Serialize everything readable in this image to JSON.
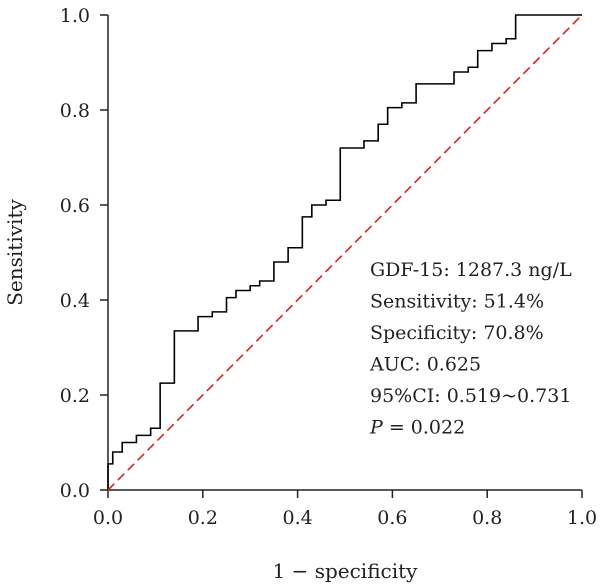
{
  "chart_data": {
    "type": "line",
    "xlabel": "1 − specificity",
    "ylabel": "Sensitivity",
    "xlim": [
      0,
      1
    ],
    "ylim": [
      0,
      1
    ],
    "x_ticks": [
      "0.0",
      "0.2",
      "0.4",
      "0.6",
      "0.8",
      "1.0"
    ],
    "y_ticks": [
      "0.0",
      "0.2",
      "0.4",
      "0.6",
      "0.8",
      "1.0"
    ],
    "grid": false,
    "series": [
      {
        "style": "step",
        "color": "#000000",
        "x": [
          0.0,
          0.0,
          0.01,
          0.01,
          0.03,
          0.03,
          0.06,
          0.06,
          0.09,
          0.09,
          0.11,
          0.11,
          0.14,
          0.14,
          0.19,
          0.19,
          0.22,
          0.22,
          0.25,
          0.25,
          0.27,
          0.27,
          0.3,
          0.3,
          0.32,
          0.32,
          0.35,
          0.35,
          0.38,
          0.38,
          0.41,
          0.41,
          0.43,
          0.43,
          0.46,
          0.46,
          0.49,
          0.49,
          0.54,
          0.54,
          0.57,
          0.57,
          0.59,
          0.59,
          0.62,
          0.62,
          0.65,
          0.65,
          0.73,
          0.73,
          0.76,
          0.76,
          0.78,
          0.78,
          0.81,
          0.81,
          0.84,
          0.84,
          0.86,
          0.86,
          1.0
        ],
        "y": [
          0.0,
          0.055,
          0.055,
          0.08,
          0.08,
          0.1,
          0.1,
          0.115,
          0.115,
          0.13,
          0.13,
          0.225,
          0.225,
          0.335,
          0.335,
          0.365,
          0.365,
          0.375,
          0.375,
          0.405,
          0.405,
          0.42,
          0.42,
          0.43,
          0.43,
          0.44,
          0.44,
          0.48,
          0.48,
          0.51,
          0.51,
          0.575,
          0.575,
          0.6,
          0.6,
          0.61,
          0.61,
          0.72,
          0.72,
          0.735,
          0.735,
          0.77,
          0.77,
          0.805,
          0.805,
          0.815,
          0.815,
          0.855,
          0.855,
          0.88,
          0.88,
          0.89,
          0.89,
          0.925,
          0.925,
          0.94,
          0.94,
          0.95,
          0.95,
          1.0,
          1.0
        ]
      },
      {
        "style": "dashed",
        "color": "#e02020",
        "x": [
          0,
          1
        ],
        "y": [
          0,
          1
        ]
      }
    ],
    "annotations": [
      "GDF-15: 1287.3 ng/L",
      "Sensitivity: 51.4%",
      "Specificity: 70.8%",
      "AUC: 0.625",
      "95%CI: 0.519~0.731"
    ],
    "p_value": {
      "symbol": "P",
      "rest": " = 0.022"
    }
  }
}
